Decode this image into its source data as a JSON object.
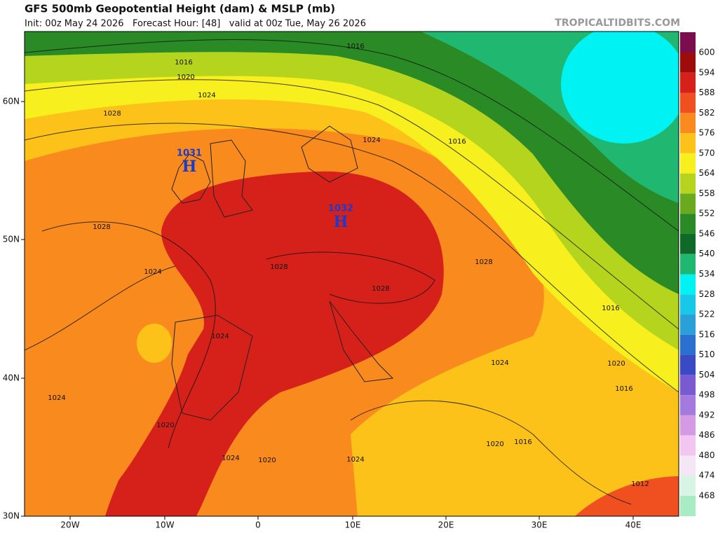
{
  "header": {
    "title": "GFS 500mb Geopotential Height (dam) & MSLP (mb)",
    "subtitle": "Init: 00z May 24 2026   Forecast Hour: [48]   valid at 00z Tue, May 26 2026",
    "credit": "TROPICALTIDBITS.COM"
  },
  "colorbar": {
    "levels": [
      600,
      594,
      588,
      582,
      576,
      570,
      564,
      558,
      552,
      546,
      540,
      534,
      528,
      522,
      516,
      510,
      504,
      498,
      492,
      486,
      480,
      474,
      468
    ],
    "colors": [
      "#7b0d4e",
      "#9e0b0b",
      "#d6201a",
      "#f05020",
      "#f88a1e",
      "#fcc21a",
      "#f8f01e",
      "#b4d41e",
      "#6aaa1e",
      "#2a8a26",
      "#0f6a2a",
      "#20b870",
      "#00f2f2",
      "#18c8e8",
      "#2aa0d8",
      "#2a70d0",
      "#3a4ac4",
      "#7a5ad0",
      "#a57ade",
      "#d49ae4",
      "#f2c6f0",
      "#f4e6f4",
      "#d8f4e4",
      "#a8ecc4"
    ]
  },
  "lon_labels": [
    "20W",
    "10W",
    "0",
    "10E",
    "20E",
    "30E",
    "40E"
  ],
  "lat_labels": [
    "60N",
    "50N",
    "40N",
    "30N"
  ],
  "contour_labels": [
    "1016",
    "1016",
    "1020",
    "1024",
    "1028",
    "1024",
    "1016",
    "1028",
    "1024",
    "1028",
    "1028",
    "1028",
    "1016",
    "1024",
    "1024",
    "1020",
    "1016",
    "1024",
    "1020",
    "1024",
    "1020",
    "1024",
    "1020",
    "1016",
    "1012"
  ],
  "highs": [
    {
      "pressure": "1031",
      "symbol": "H"
    },
    {
      "pressure": "1032",
      "symbol": "H"
    }
  ]
}
